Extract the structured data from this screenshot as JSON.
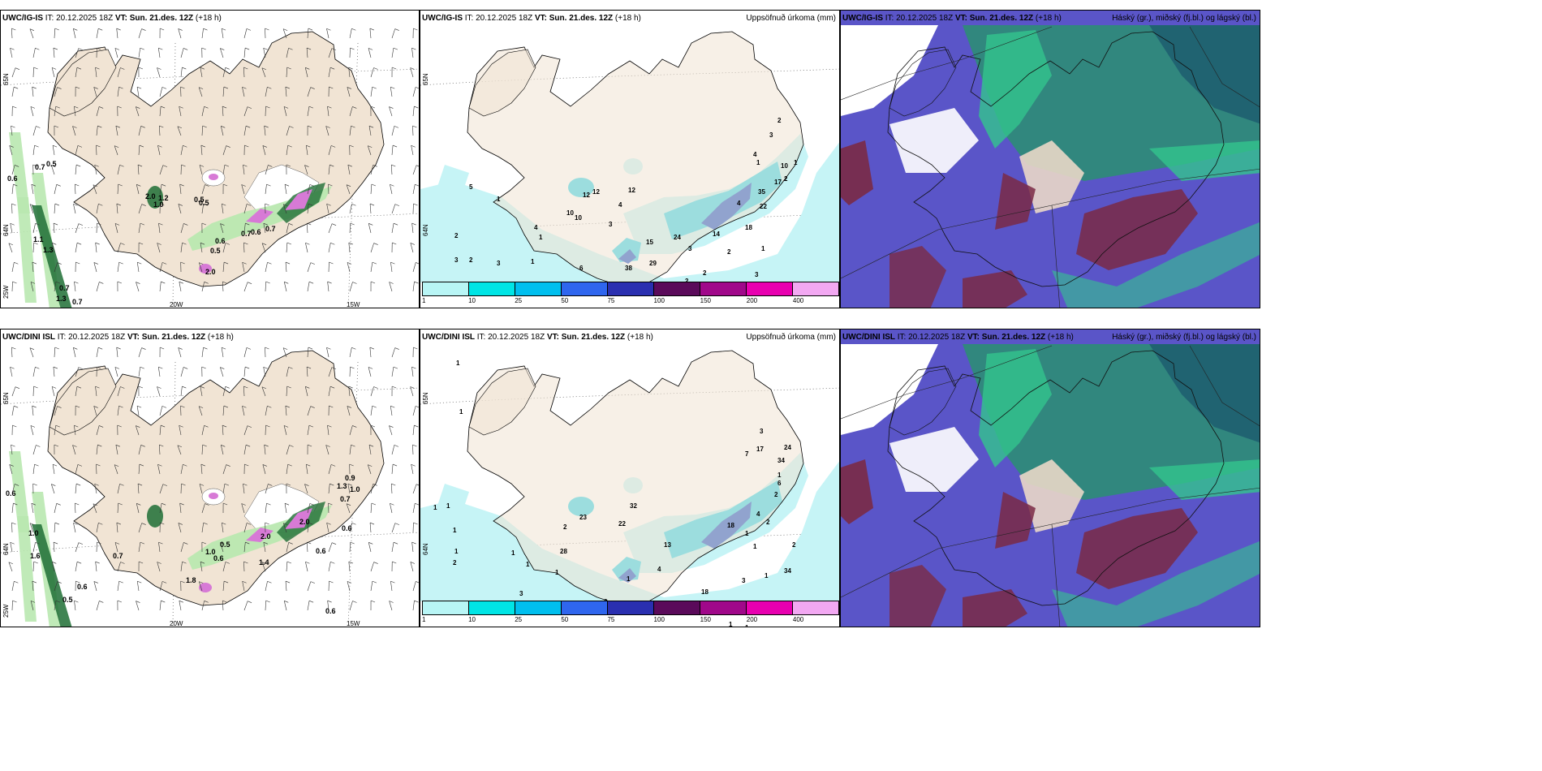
{
  "panels": [
    {
      "id": "wind-ig-top",
      "model": "UWC/IG-IS",
      "it_label": "IT:",
      "it_value": "20.12.2025 18Z",
      "vt_label": "VT:",
      "vt_value": "Sun. 21.des. 12Z",
      "lead": "(+18 h)",
      "right_title": "",
      "lat_labels": [
        "65N",
        "64N",
        "25W"
      ],
      "lon_labels": [
        "20W",
        "15W"
      ],
      "value_labels": [
        "0.6",
        "0.7",
        "0.5",
        "1.1",
        "1.3",
        "0.7",
        "1.3",
        "0.7",
        "2.0",
        "1.2",
        "1.0",
        "0.5",
        "0.5",
        "0.6",
        "0.5",
        "0.7",
        "0.6",
        "0.7",
        "2.0"
      ]
    },
    {
      "id": "precip-ig-top",
      "model": "UWC/IG-IS",
      "it_label": "IT:",
      "it_value": "20.12.2025 18Z",
      "vt_label": "VT:",
      "vt_value": "Sun. 21.des. 12Z",
      "lead": "(+18 h)",
      "right_title": "Uppsöfnuð úrkoma (mm)",
      "lat_labels": [
        "65N",
        "64N"
      ],
      "lon_labels": [],
      "value_labels": [
        "5",
        "1",
        "2",
        "3",
        "2",
        "3",
        "1",
        "4",
        "6",
        "17",
        "5",
        "12",
        "10",
        "3",
        "12",
        "4",
        "1",
        "15",
        "24",
        "38",
        "29",
        "2",
        "4",
        "14",
        "18",
        "22",
        "35",
        "10",
        "17",
        "4",
        "2",
        "3",
        "1",
        "1",
        "2",
        "1",
        "12",
        "10",
        "3",
        "2",
        "3",
        "2",
        "1"
      ]
    },
    {
      "id": "cloud-ig-top",
      "model": "UWC/IG-IS",
      "it_label": "IT:",
      "it_value": "20.12.2025 18Z",
      "vt_label": "VT:",
      "vt_value": "Sun. 21.des. 12Z",
      "lead": "(+18 h)",
      "right_title": "Háský (gr.), miðský (fj.bl.) og lágský (bl.)",
      "lat_labels": [],
      "lon_labels": [],
      "value_labels": []
    },
    {
      "id": "wind-dini-bottom",
      "model": "UWC/DINI ISL",
      "it_label": "IT:",
      "it_value": "20.12.2025 18Z",
      "vt_label": "VT:",
      "vt_value": "Sun. 21.des. 12Z",
      "lead": "(+18 h)",
      "right_title": "",
      "lat_labels": [
        "65N",
        "64N",
        "25W"
      ],
      "lon_labels": [
        "20W",
        "15W"
      ],
      "value_labels": [
        "0.6",
        "1.0",
        "1.6",
        "0.7",
        "0.6",
        "0.5",
        "1.0",
        "0.6",
        "0.5",
        "1.8",
        "2.0",
        "1.4",
        "2.0",
        "0.6",
        "0.6",
        "0.7",
        "1.0",
        "0.9",
        "0.6",
        "1.3"
      ]
    },
    {
      "id": "precip-dini-bottom",
      "model": "UWC/DINI ISL",
      "it_label": "IT:",
      "it_value": "20.12.2025 18Z",
      "vt_label": "VT:",
      "vt_value": "Sun. 21.des. 12Z",
      "lead": "(+18 h)",
      "right_title": "Uppsöfnuð úrkoma (mm)",
      "lat_labels": [
        "65N",
        "64N"
      ],
      "lon_labels": [],
      "value_labels": [
        "1",
        "1",
        "1",
        "1",
        "1",
        "1",
        "2",
        "1",
        "2",
        "1",
        "1",
        "3",
        "5",
        "2",
        "1",
        "4",
        "13",
        "23",
        "32",
        "22",
        "28",
        "14",
        "18",
        "4",
        "2",
        "6",
        "1",
        "34",
        "24",
        "17",
        "7",
        "3",
        "1",
        "2",
        "1",
        "1",
        "34",
        "18",
        "3",
        "3",
        "1",
        "1",
        "2"
      ]
    },
    {
      "id": "cloud-dini-bottom",
      "model": "UWC/DINI ISL",
      "it_label": "IT:",
      "it_value": "20.12.2025 18Z",
      "vt_label": "VT:",
      "vt_value": "Sun. 21.des. 12Z",
      "lead": "(+18 h)",
      "right_title": "Háský (gr.), miðský (fj.bl.) og lágský (bl.)",
      "lat_labels": [],
      "lon_labels": [],
      "value_labels": []
    }
  ],
  "colorbar": {
    "ticks": [
      "1",
      "10",
      "25",
      "50",
      "75",
      "100",
      "150",
      "200",
      "400"
    ],
    "colors": [
      "#b8f5f5",
      "#00e5e5",
      "#00bfee",
      "#2f66ee",
      "#2a2fb0",
      "#5a0a5a",
      "#a0088a",
      "#e800b0",
      "#f2a8f2"
    ]
  },
  "colors": {
    "land": "#f1e4d4",
    "sea": "#ffffff",
    "wind_light": "#b9e8b0",
    "wind_dark": "#1f6e35",
    "gust_purple": "#d77ad6",
    "precip_light": "#c6f4f6",
    "precip_mid": "#36d6ea",
    "precip_dark": "#1e54c8",
    "cloud_high": "#7a2a45",
    "cloud_mid": "#5a55c8",
    "cloud_low": "#2f8a7a",
    "cloud_green": "#33c48d"
  }
}
